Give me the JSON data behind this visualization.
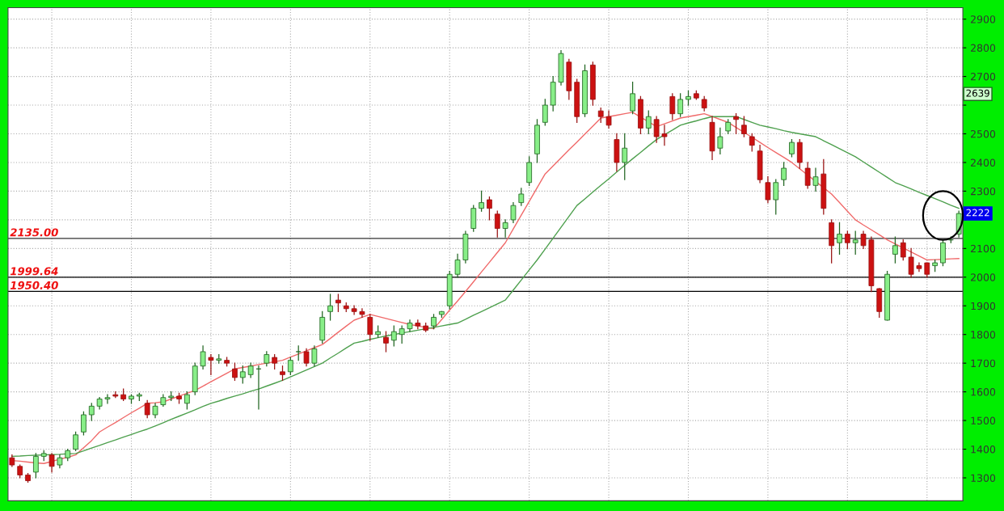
{
  "chart_data": {
    "type": "candlestick",
    "categories": [
      null,
      null,
      null,
      null,
      null,
      null,
      null,
      null,
      null,
      null,
      null,
      null,
      null,
      null,
      null,
      null,
      null,
      null,
      null,
      null,
      null,
      null,
      null,
      null,
      null,
      null,
      null,
      null,
      null,
      null,
      null,
      null,
      null,
      null,
      null,
      null,
      null,
      null,
      null,
      null,
      null,
      null,
      null,
      null,
      null,
      null,
      null,
      null,
      null,
      null,
      null,
      null,
      null,
      null,
      null,
      null,
      null,
      null,
      null,
      null,
      null,
      null,
      null,
      null,
      null,
      null,
      null,
      null,
      null,
      null,
      null,
      null,
      null,
      null,
      null,
      null,
      null,
      null,
      null,
      null,
      null,
      null,
      null,
      null,
      null,
      null,
      null,
      null,
      null,
      null,
      null,
      null,
      null,
      null,
      null,
      null,
      null,
      null,
      null,
      null,
      null,
      null,
      null,
      null,
      null,
      null,
      null,
      null,
      null,
      null,
      null,
      null,
      null,
      null,
      null,
      null,
      null,
      null,
      null,
      null
    ],
    "ohlc": [
      [
        1370,
        1380,
        1340,
        1345
      ],
      [
        1340,
        1345,
        1300,
        1310
      ],
      [
        1310,
        1315,
        1285,
        1290
      ],
      [
        1320,
        1385,
        1300,
        1375
      ],
      [
        1375,
        1395,
        1360,
        1385
      ],
      [
        1380,
        1385,
        1320,
        1340
      ],
      [
        1345,
        1380,
        1335,
        1370
      ],
      [
        1370,
        1400,
        1360,
        1395
      ],
      [
        1400,
        1460,
        1395,
        1450
      ],
      [
        1460,
        1530,
        1450,
        1520
      ],
      [
        1520,
        1560,
        1500,
        1550
      ],
      [
        1550,
        1580,
        1540,
        1575
      ],
      [
        1575,
        1590,
        1560,
        1580
      ],
      [
        1590,
        1600,
        1580,
        1585
      ],
      [
        1590,
        1610,
        1570,
        1575
      ],
      [
        1575,
        1590,
        1560,
        1585
      ],
      [
        1585,
        1595,
        1570,
        1590
      ],
      [
        1560,
        1570,
        1510,
        1520
      ],
      [
        1520,
        1560,
        1510,
        1550
      ],
      [
        1555,
        1590,
        1550,
        1580
      ],
      [
        1580,
        1600,
        1570,
        1585
      ],
      [
        1585,
        1595,
        1560,
        1575
      ],
      [
        1560,
        1600,
        1540,
        1590
      ],
      [
        1600,
        1700,
        1590,
        1690
      ],
      [
        1690,
        1760,
        1680,
        1740
      ],
      [
        1720,
        1730,
        1660,
        1710
      ],
      [
        1710,
        1730,
        1700,
        1715
      ],
      [
        1710,
        1720,
        1690,
        1700
      ],
      [
        1680,
        1700,
        1640,
        1650
      ],
      [
        1650,
        1690,
        1630,
        1670
      ],
      [
        1660,
        1700,
        1650,
        1690
      ],
      [
        1680,
        1690,
        1540,
        1680
      ],
      [
        1700,
        1740,
        1690,
        1730
      ],
      [
        1720,
        1730,
        1680,
        1700
      ],
      [
        1670,
        1690,
        1640,
        1660
      ],
      [
        1670,
        1720,
        1660,
        1710
      ],
      [
        1740,
        1760,
        1710,
        1740
      ],
      [
        1740,
        1750,
        1690,
        1700
      ],
      [
        1700,
        1760,
        1690,
        1750
      ],
      [
        1780,
        1880,
        1770,
        1860
      ],
      [
        1880,
        1940,
        1850,
        1900
      ],
      [
        1920,
        1940,
        1880,
        1910
      ],
      [
        1900,
        1910,
        1880,
        1890
      ],
      [
        1890,
        1900,
        1870,
        1880
      ],
      [
        1880,
        1890,
        1860,
        1870
      ],
      [
        1860,
        1870,
        1780,
        1800
      ],
      [
        1800,
        1830,
        1790,
        1810
      ],
      [
        1790,
        1810,
        1740,
        1770
      ],
      [
        1780,
        1830,
        1760,
        1810
      ],
      [
        1800,
        1830,
        1770,
        1820
      ],
      [
        1820,
        1850,
        1810,
        1840
      ],
      [
        1840,
        1850,
        1820,
        1830
      ],
      [
        1830,
        1840,
        1810,
        1815
      ],
      [
        1830,
        1870,
        1820,
        1860
      ],
      [
        1870,
        1880,
        1860,
        1880
      ],
      [
        1900,
        2020,
        1890,
        2010
      ],
      [
        2010,
        2080,
        2000,
        2060
      ],
      [
        2060,
        2160,
        2050,
        2150
      ],
      [
        2170,
        2250,
        2160,
        2240
      ],
      [
        2240,
        2300,
        2230,
        2260
      ],
      [
        2270,
        2280,
        2200,
        2240
      ],
      [
        2220,
        2230,
        2140,
        2170
      ],
      [
        2170,
        2200,
        2140,
        2190
      ],
      [
        2200,
        2260,
        2190,
        2250
      ],
      [
        2260,
        2310,
        2250,
        2290
      ],
      [
        2330,
        2420,
        2320,
        2400
      ],
      [
        2430,
        2550,
        2400,
        2530
      ],
      [
        2540,
        2620,
        2530,
        2600
      ],
      [
        2600,
        2700,
        2580,
        2680
      ],
      [
        2680,
        2790,
        2670,
        2780
      ],
      [
        2750,
        2760,
        2620,
        2650
      ],
      [
        2680,
        2690,
        2540,
        2560
      ],
      [
        2570,
        2740,
        2560,
        2720
      ],
      [
        2740,
        2750,
        2600,
        2620
      ],
      [
        2580,
        2590,
        2540,
        2560
      ],
      [
        2560,
        2580,
        2520,
        2530
      ],
      [
        2480,
        2500,
        2370,
        2400
      ],
      [
        2400,
        2500,
        2340,
        2450
      ],
      [
        2580,
        2680,
        2570,
        2640
      ],
      [
        2620,
        2630,
        2500,
        2520
      ],
      [
        2520,
        2580,
        2500,
        2560
      ],
      [
        2550,
        2560,
        2470,
        2490
      ],
      [
        2500,
        2530,
        2460,
        2490
      ],
      [
        2630,
        2640,
        2550,
        2570
      ],
      [
        2570,
        2640,
        2560,
        2620
      ],
      [
        2620,
        2650,
        2600,
        2630
      ],
      [
        2640,
        2650,
        2620,
        2625
      ],
      [
        2620,
        2630,
        2580,
        2590
      ],
      [
        2540,
        2560,
        2410,
        2440
      ],
      [
        2450,
        2520,
        2430,
        2490
      ],
      [
        2510,
        2550,
        2500,
        2540
      ],
      [
        2560,
        2570,
        2500,
        2550
      ],
      [
        2530,
        2560,
        2490,
        2500
      ],
      [
        2490,
        2500,
        2440,
        2460
      ],
      [
        2440,
        2460,
        2330,
        2340
      ],
      [
        2330,
        2350,
        2260,
        2270
      ],
      [
        2270,
        2340,
        2220,
        2330
      ],
      [
        2340,
        2400,
        2320,
        2380
      ],
      [
        2430,
        2480,
        2420,
        2470
      ],
      [
        2470,
        2480,
        2380,
        2400
      ],
      [
        2380,
        2400,
        2310,
        2320
      ],
      [
        2320,
        2380,
        2300,
        2350
      ],
      [
        2360,
        2410,
        2220,
        2240
      ],
      [
        2190,
        2200,
        2050,
        2110
      ],
      [
        2120,
        2190,
        2080,
        2150
      ],
      [
        2150,
        2160,
        2100,
        2120
      ],
      [
        2120,
        2160,
        2080,
        2130
      ],
      [
        2150,
        2160,
        2100,
        2110
      ],
      [
        2130,
        2140,
        1950,
        1970
      ],
      [
        1960,
        1960,
        1860,
        1880
      ],
      [
        1850,
        2020,
        1850,
        2010
      ],
      [
        2080,
        2140,
        2050,
        2110
      ],
      [
        2120,
        2130,
        2060,
        2070
      ],
      [
        2070,
        2100,
        2000,
        2010
      ],
      [
        2040,
        2050,
        2020,
        2030
      ],
      [
        2050,
        2050,
        2000,
        2010
      ],
      [
        2040,
        2060,
        2020,
        2050
      ],
      [
        2050,
        2130,
        2040,
        2120
      ],
      [
        2130,
        2140,
        2120,
        2130
      ],
      [
        2150,
        2230,
        2140,
        2222
      ]
    ],
    "series": [
      {
        "type": "line",
        "color": "#f06a6a",
        "values": [
          1360,
          1358,
          1355,
          1352,
          1350,
          1357,
          1365,
          1372,
          1380,
          1405,
          1430,
          1460,
          1477,
          1493,
          1510,
          1527,
          1543,
          1560,
          1562,
          1565,
          1575,
          1585,
          1595,
          1605,
          1620,
          1635,
          1650,
          1665,
          1680,
          1685,
          1690,
          1695,
          1700,
          1705,
          1710,
          1721,
          1732,
          1743,
          1754,
          1765,
          1786,
          1808,
          1829,
          1850,
          1860,
          1870,
          1863,
          1856,
          1849,
          1842,
          1835,
          1830,
          1825,
          1820,
          1852,
          1885,
          1917,
          1950,
          1984,
          2018,
          2052,
          2086,
          2120,
          2168,
          2216,
          2264,
          2312,
          2360,
          2388,
          2416,
          2444,
          2471,
          2499,
          2527,
          2555,
          2560,
          2565,
          2570,
          2575,
          2558,
          2542,
          2525,
          2535,
          2545,
          2555,
          2560,
          2565,
          2570,
          2560,
          2550,
          2540,
          2522,
          2505,
          2488,
          2470,
          2452,
          2435,
          2418,
          2400,
          2378,
          2356,
          2334,
          2312,
          2290,
          2260,
          2230,
          2200,
          2182,
          2165,
          2148,
          2130,
          2116,
          2102,
          2088,
          2074,
          2060,
          2061,
          2062,
          2064,
          2065
        ]
      },
      {
        "type": "line",
        "color": "#4ea04e",
        "values": [
          1375,
          1376,
          1378,
          1379,
          1380,
          1381,
          1382,
          1384,
          1385,
          1394,
          1404,
          1413,
          1423,
          1432,
          1442,
          1451,
          1461,
          1470,
          1481,
          1492,
          1504,
          1515,
          1526,
          1537,
          1549,
          1560,
          1568,
          1577,
          1585,
          1593,
          1602,
          1610,
          1620,
          1630,
          1640,
          1652,
          1664,
          1676,
          1688,
          1700,
          1718,
          1735,
          1753,
          1770,
          1776,
          1783,
          1789,
          1795,
          1800,
          1805,
          1810,
          1815,
          1820,
          1825,
          1830,
          1835,
          1840,
          1853,
          1867,
          1880,
          1893,
          1907,
          1920,
          1955,
          1990,
          2025,
          2060,
          2098,
          2136,
          2174,
          2212,
          2250,
          2273,
          2297,
          2320,
          2343,
          2367,
          2390,
          2413,
          2435,
          2458,
          2480,
          2497,
          2513,
          2530,
          2538,
          2545,
          2553,
          2560,
          2560,
          2560,
          2560,
          2550,
          2540,
          2530,
          2524,
          2518,
          2511,
          2505,
          2500,
          2495,
          2490,
          2476,
          2462,
          2448,
          2434,
          2420,
          2402,
          2384,
          2366,
          2348,
          2330,
          2319,
          2308,
          2296,
          2285,
          2274,
          2263,
          2251,
          2240
        ]
      }
    ],
    "ylim": [
      1220,
      2940
    ],
    "yticks": [
      1300,
      1400,
      1500,
      1600,
      1700,
      1800,
      1900,
      2000,
      2100,
      {
        "value": 2200,
        "label": null
      },
      2300,
      2400,
      2500,
      {
        "value": 2600,
        "label": null
      },
      2700,
      2800,
      2900
    ],
    "ref_lines": [
      {
        "axis": "y",
        "value": 2135,
        "label": "2135.00",
        "color": "#333333"
      },
      {
        "axis": "y",
        "value": 1999.64,
        "label": "1999.64",
        "color": "#000000"
      },
      {
        "axis": "y",
        "value": 1950.4,
        "label": "1950.40",
        "color": "#000000"
      }
    ],
    "annotations": [
      {
        "text": "2639",
        "y": 2639
      },
      {
        "text": "2222",
        "y": 2222
      }
    ],
    "grid": true,
    "tick_labels": "y"
  }
}
